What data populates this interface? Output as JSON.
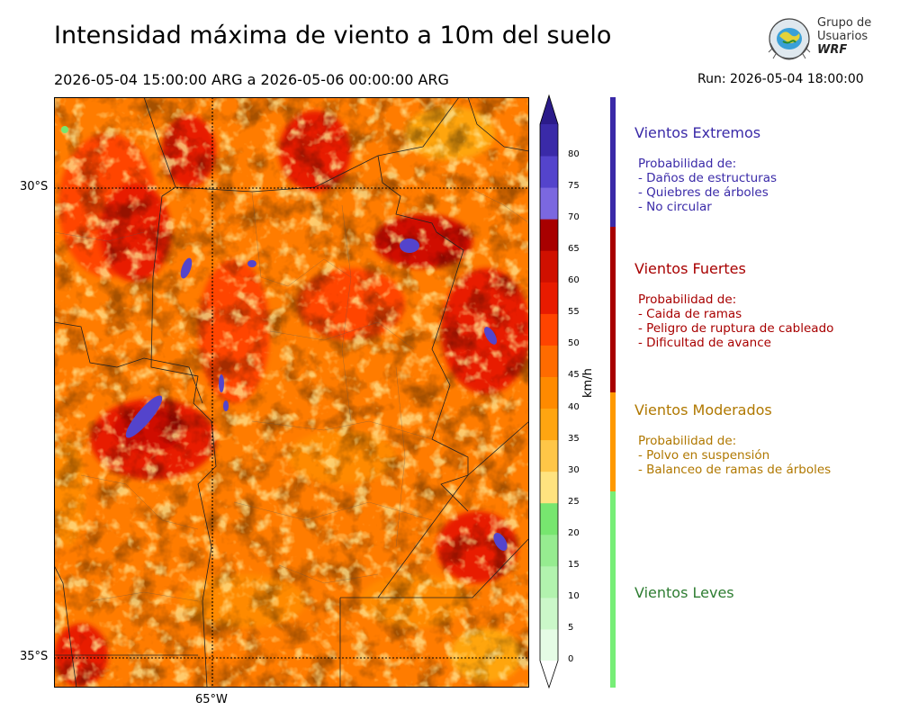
{
  "header": {
    "title": "Intensidad máxima de viento a 10m del suelo",
    "period": "2026-05-04 15:00:00 ARG  a  2026-05-06 00:00:00 ARG",
    "run": "Run: 2026-05-04 18:00:00"
  },
  "logo": {
    "line1": "Grupo de",
    "line2": "Usuarios",
    "line3": "WRF"
  },
  "map": {
    "lat_labels": [
      "30°S",
      "35°S"
    ],
    "lon_labels": [
      "65°W"
    ]
  },
  "colorbar": {
    "unit": "km/h",
    "ticks": [
      "0",
      "5",
      "10",
      "15",
      "20",
      "25",
      "30",
      "35",
      "40",
      "45",
      "50",
      "55",
      "60",
      "65",
      "70",
      "75",
      "80"
    ],
    "colors": [
      "#e5fce5",
      "#cbf8c9",
      "#b2f3ae",
      "#96ec90",
      "#77e66f",
      "#ffe37f",
      "#ffc647",
      "#ffa511",
      "#ff8a00",
      "#ff6b00",
      "#ff4400",
      "#e81b00",
      "#d01000",
      "#a80000",
      "#7b68e0",
      "#5444cc",
      "#3a2aa8"
    ],
    "extend_color": "#2b1b8a"
  },
  "categories": [
    {
      "title": "Vientos Extremos",
      "color": "#3a2aa8",
      "lines": [
        "Probabilidad de:",
        "- Daños de estructuras",
        "- Quiebres de árboles",
        "- No circular"
      ]
    },
    {
      "title": "Vientos Fuertes",
      "color": "#a80000",
      "lines": [
        "Probabilidad de:",
        "- Caida de ramas",
        "- Peligro de ruptura de cableado",
        "- Dificultad de avance"
      ]
    },
    {
      "title": "Vientos Moderados",
      "color": "#b07800",
      "lines": [
        "Probabilidad de:",
        "- Polvo en suspensión",
        "- Balanceo de ramas de árboles"
      ]
    },
    {
      "title": "Vientos Leves",
      "color": "#2e7d32",
      "lines": []
    }
  ],
  "category_bar_colors": [
    "#3a2aa8",
    "#a80000",
    "#ff9900",
    "#77ee77"
  ]
}
